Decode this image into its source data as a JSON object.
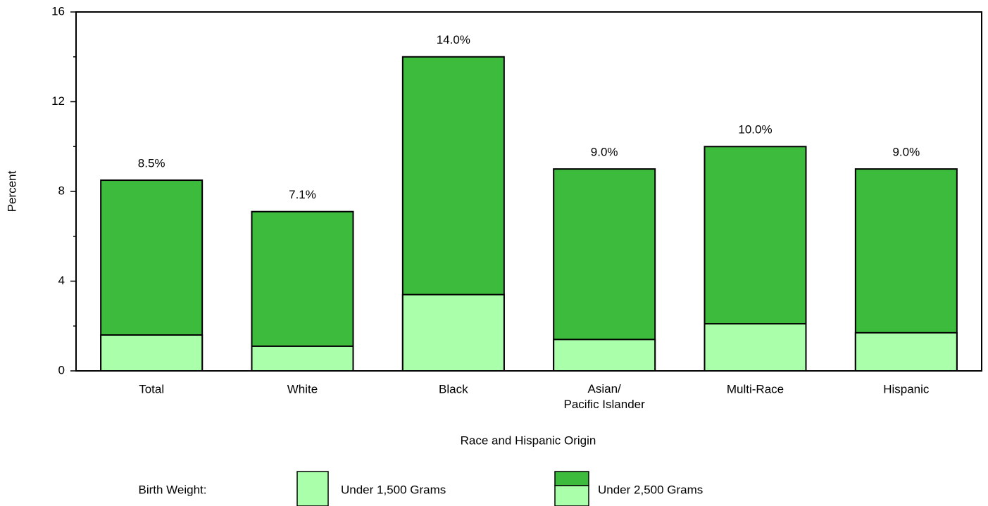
{
  "chart_data": {
    "type": "overlapping-bar",
    "xlabel": "Race and Hispanic Origin",
    "ylabel": "Percent",
    "categories": [
      "Total",
      "White",
      "Black",
      "Asian/\nPacific Islander",
      "Multi-Race",
      "Hispanic"
    ],
    "series": [
      {
        "name": "Under 1,500 Grams",
        "color": "#aaffaa",
        "values": [
          1.6,
          1.1,
          3.4,
          1.4,
          2.1,
          1.7
        ]
      },
      {
        "name": "Under 2,500 Grams",
        "color": "#3dbb3d",
        "values": [
          8.5,
          7.1,
          14.0,
          9.0,
          10.0,
          9.0
        ],
        "value_labels": [
          "8.5%",
          "7.1%",
          "14.0%",
          "9.0%",
          "10.0%",
          "9.0%"
        ]
      }
    ],
    "legend_title": "Birth Weight:",
    "ylim": [
      0,
      16
    ],
    "yticks": [
      0,
      4,
      8,
      12,
      16
    ],
    "minor_yticks": [
      2,
      6,
      10,
      14
    ],
    "grid": false
  }
}
